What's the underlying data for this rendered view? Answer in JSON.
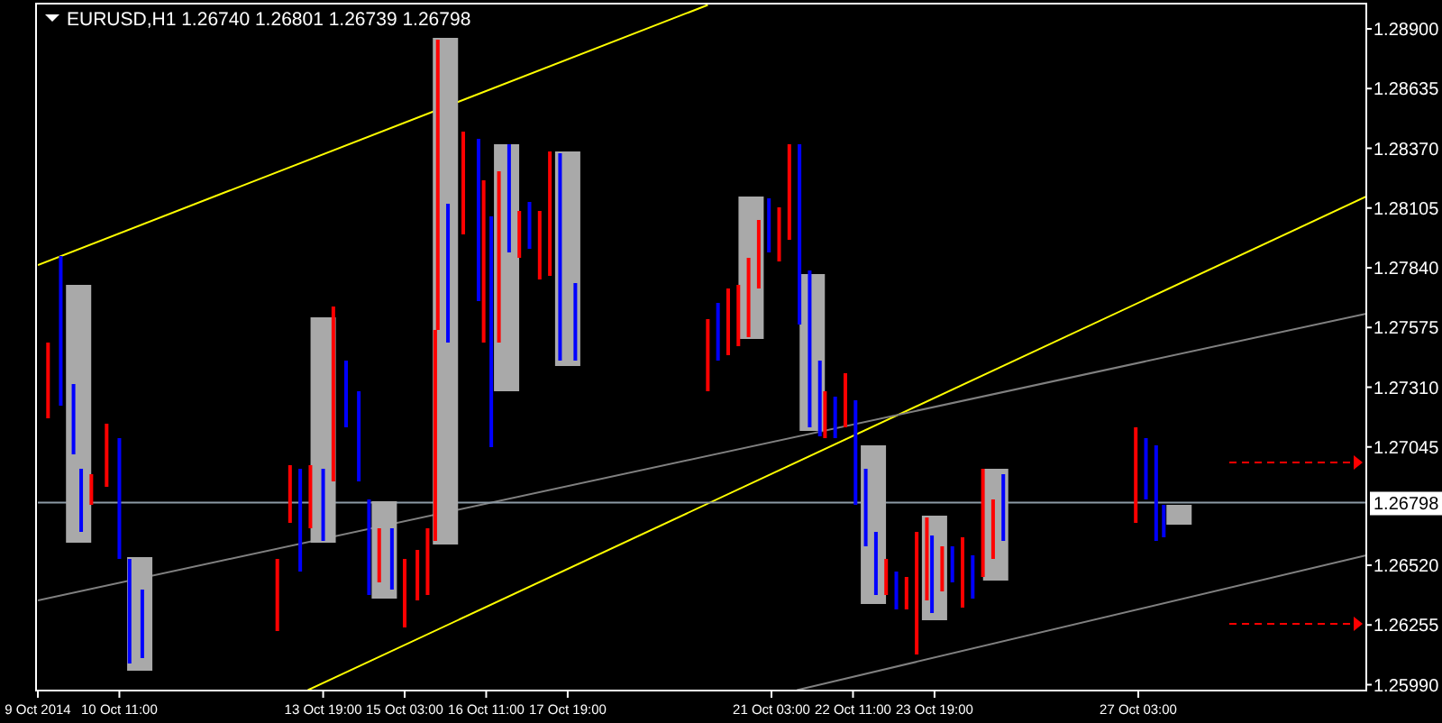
{
  "chart_data": {
    "type": "bar",
    "title": "EURUSD,H1  1.26740 1.26801 1.26739 1.26798",
    "x": [
      "2014-10-09T19:00",
      "2014-10-10T19:00",
      "2014-10-13T19:00",
      "2014-10-14T19:00",
      "2014-10-15T19:00",
      "2014-10-16T19:00",
      "2014-10-17T19:00",
      "2014-10-20T19:00",
      "2014-10-21T19:00",
      "2014-10-22T19:00",
      "2014-10-23T19:00",
      "2014-10-24T19:00",
      "2014-10-27T19:00"
    ],
    "base": [
      1.2662,
      1.26052,
      1.2662,
      1.26372,
      1.26612,
      1.27292,
      1.27404,
      1.27524,
      1.27116,
      1.26348,
      1.26276,
      1.26452,
      1.267
    ],
    "values": [
      0.01144,
      0.00504,
      0.01,
      0.00432,
      0.02248,
      0.01096,
      0.00952,
      0.00632,
      0.00696,
      0.00704,
      0.00464,
      0.00496,
      0.00088
    ],
    "color": "#a9a9a9",
    "series": [
      {
        "type": "bar",
        "x": [
          "2014-10-09T07:00",
          "2014-10-09T12:00",
          "2014-10-09T17:00",
          "2014-10-09T20:00",
          "2014-10-10T00:00",
          "2014-10-10T06:00",
          "2014-10-10T11:00",
          "2014-10-10T15:00",
          "2014-10-10T20:00",
          "2014-10-13T01:00",
          "2014-10-13T06:00",
          "2014-10-13T10:00",
          "2014-10-13T14:00",
          "2014-10-13T19:00",
          "2014-10-13T23:00",
          "2014-10-14T04:00",
          "2014-10-14T09:00",
          "2014-10-14T13:00",
          "2014-10-14T17:00",
          "2014-10-14T22:00",
          "2014-10-15T03:00",
          "2014-10-15T08:00",
          "2014-10-15T12:00",
          "2014-10-15T15:00",
          "2014-10-15T16:00",
          "2014-10-15T20:00",
          "2014-10-16T02:00",
          "2014-10-16T08:00",
          "2014-10-16T10:00",
          "2014-10-16T13:00",
          "2014-10-16T16:00",
          "2014-10-16T20:00",
          "2014-10-17T00:00",
          "2014-10-17T04:00",
          "2014-10-17T08:00",
          "2014-10-17T12:00",
          "2014-10-17T16:00",
          "2014-10-17T22:00",
          "2014-10-20T02:00",
          "2014-10-20T06:00",
          "2014-10-20T10:00",
          "2014-10-20T14:00",
          "2014-10-20T18:00",
          "2014-10-20T22:00",
          "2014-10-21T02:00",
          "2014-10-21T06:00",
          "2014-10-21T10:00",
          "2014-10-21T14:00",
          "2014-10-21T18:00",
          "2014-10-21T22:00",
          "2014-10-22T00:00",
          "2014-10-22T04:00",
          "2014-10-22T08:00",
          "2014-10-22T12:00",
          "2014-10-22T16:00",
          "2014-10-22T20:00",
          "2014-10-23T00:00",
          "2014-10-23T04:00",
          "2014-10-23T08:00",
          "2014-10-23T12:00",
          "2014-10-23T16:00",
          "2014-10-23T18:00",
          "2014-10-23T22:00",
          "2014-10-24T02:00",
          "2014-10-24T06:00",
          "2014-10-24T10:00",
          "2014-10-24T14:00",
          "2014-10-24T18:00",
          "2014-10-24T22:00",
          "2014-10-27T02:00",
          "2014-10-27T06:00",
          "2014-10-27T10:00",
          "2014-10-27T13:00"
        ],
        "base": [
          1.27172,
          1.27228,
          1.27012,
          1.26668,
          1.26788,
          1.26868,
          1.26548,
          1.26084,
          1.26108,
          1.26228,
          1.26708,
          1.26492,
          1.26684,
          1.26628,
          1.26892,
          1.27132,
          1.26892,
          1.26388,
          1.26444,
          1.26412,
          1.26244,
          1.26364,
          1.26388,
          1.26628,
          1.27564,
          1.27508,
          1.27988,
          1.27692,
          1.27508,
          1.27044,
          1.27508,
          1.27908,
          1.27884,
          1.27924,
          1.27788,
          1.27804,
          1.27428,
          1.27428,
          1.27292,
          1.27428,
          1.27452,
          1.27492,
          1.27532,
          1.27748,
          1.27908,
          1.27868,
          1.27964,
          1.27588,
          1.27132,
          1.27092,
          1.27084,
          1.27084,
          1.27132,
          1.26788,
          1.26604,
          1.26388,
          1.26388,
          1.26324,
          1.26324,
          1.26124,
          1.26364,
          1.26308,
          1.26404,
          1.26444,
          1.26332,
          1.26372,
          1.26468,
          1.26548,
          1.26628,
          1.26708,
          1.26812,
          1.26628,
          1.26644
        ],
        "values": [
          0.00336,
          0.00664,
          0.00312,
          0.0028,
          0.00136,
          0.0028,
          0.00536,
          0.00464,
          0.00304,
          0.0032,
          0.00256,
          0.00456,
          0.0028,
          0.0032,
          0.00776,
          0.00296,
          0.004,
          0.00424,
          0.0024,
          0.00272,
          0.00304,
          0.00224,
          0.00296,
          0.00936,
          0.01288,
          0.00616,
          0.00456,
          0.0072,
          0.0072,
          0.01024,
          0.0076,
          0.0048,
          0.00208,
          0.00208,
          0.00304,
          0.00552,
          0.0092,
          0.00344,
          0.0032,
          0.00256,
          0.00296,
          0.00272,
          0.00352,
          0.00304,
          0.0024,
          0.0024,
          0.00424,
          0.008,
          0.00696,
          0.00336,
          0.00208,
          0.00184,
          0.0024,
          0.00464,
          0.00344,
          0.0028,
          0.0016,
          0.00168,
          0.00144,
          0.00544,
          0.00368,
          0.00344,
          0.002,
          0.0016,
          0.00312,
          0.00192,
          0.0048,
          0.00264,
          0.00296,
          0.00424,
          0.00272,
          0.00424,
          0.00144
        ],
        "colors": [
          "#ff0000",
          "#0000ff",
          "#0000ff",
          "#0000ff",
          "#ff0000",
          "#ff0000",
          "#0000ff",
          "#0000ff",
          "#0000ff",
          "#ff0000",
          "#ff0000",
          "#0000ff",
          "#ff0000",
          "#0000ff",
          "#ff0000",
          "#0000ff",
          "#0000ff",
          "#0000ff",
          "#ff0000",
          "#0000ff",
          "#ff0000",
          "#ff0000",
          "#ff0000",
          "#ff0000",
          "#ff0000",
          "#0000ff",
          "#ff0000",
          "#0000ff",
          "#ff0000",
          "#0000ff",
          "#ff0000",
          "#0000ff",
          "#ff0000",
          "#0000ff",
          "#ff0000",
          "#ff0000",
          "#0000ff",
          "#0000ff",
          "#ff0000",
          "#0000ff",
          "#ff0000",
          "#ff0000",
          "#ff0000",
          "#ff0000",
          "#0000ff",
          "#ff0000",
          "#ff0000",
          "#0000ff",
          "#0000ff",
          "#0000ff",
          "#ff0000",
          "#0000ff",
          "#ff0000",
          "#0000ff",
          "#0000ff",
          "#0000ff",
          "#ff0000",
          "#0000ff",
          "#ff0000",
          "#ff0000",
          "#ff0000",
          "#0000ff",
          "#ff0000",
          "#0000ff",
          "#ff0000",
          "#0000ff",
          "#ff0000",
          "#ff0000",
          "#0000ff",
          "#ff0000",
          "#0000ff",
          "#0000ff",
          "#0000ff"
        ]
      },
      {
        "type": "line",
        "x": [
          "2014-10-09T03:00",
          "2014-10-20T02:00"
        ],
        "values": [
          1.27852,
          1.29006
        ],
        "color": "#ffff00"
      },
      {
        "type": "line",
        "x": [
          "2014-10-13T13:00",
          "2014-10-30T20:30"
        ],
        "values": [
          1.25966,
          1.28156
        ],
        "color": "#ffff00"
      },
      {
        "type": "line",
        "x": [
          "2014-10-09T03:00",
          "2014-10-30T20:30"
        ],
        "values": [
          1.26364,
          1.27636
        ],
        "color": "#808080"
      },
      {
        "type": "line",
        "x": [
          "2014-10-21T13:00",
          "2014-10-30T20:30"
        ],
        "values": [
          1.25966,
          1.26564
        ],
        "color": "#808080"
      }
    ],
    "ref_lines": [
      {
        "axis": "y",
        "value": 1.26798,
        "label": "1.26798",
        "color": "#8c9aa6"
      }
    ],
    "xlim": [
      "2014-10-09T03:00",
      "2014-10-30T20:30"
    ],
    "ylim": [
      1.25964,
      1.29012
    ],
    "xticks": [
      {
        "value": "2014-10-09T03:00",
        "label": "9 Oct 2014"
      },
      {
        "value": "2014-10-10T11:00",
        "label": "10 Oct 11:00"
      },
      {
        "value": "2014-10-13T19:00",
        "label": "13 Oct 19:00"
      },
      {
        "value": "2014-10-15T03:00",
        "label": "15 Oct 03:00"
      },
      {
        "value": "2014-10-16T11:00",
        "label": "16 Oct 11:00"
      },
      {
        "value": "2014-10-17T19:00",
        "label": "17 Oct 19:00"
      },
      {
        "value": "2014-10-21T03:00",
        "label": "21 Oct 03:00"
      },
      {
        "value": "2014-10-22T11:00",
        "label": "22 Oct 11:00"
      },
      {
        "value": "2014-10-23T19:00",
        "label": "23 Oct 19:00"
      },
      {
        "value": "2014-10-27T03:00",
        "label": "27 Oct 03:00"
      }
    ],
    "yticks": [
      {
        "value": 1.289,
        "label": "1.28900"
      },
      {
        "value": 1.28635,
        "label": "1.28635"
      },
      {
        "value": 1.2837,
        "label": "1.28370"
      },
      {
        "value": 1.28105,
        "label": "1.28105"
      },
      {
        "value": 1.2784,
        "label": "1.27840"
      },
      {
        "value": 1.27575,
        "label": "1.27575"
      },
      {
        "value": 1.2731,
        "label": "1.27310"
      },
      {
        "value": 1.27045,
        "label": "1.27045"
      },
      {
        "value": 1.2652,
        "label": "1.26520"
      },
      {
        "value": 1.26255,
        "label": "1.26255"
      },
      {
        "value": 1.2599,
        "label": "1.25990"
      }
    ]
  }
}
